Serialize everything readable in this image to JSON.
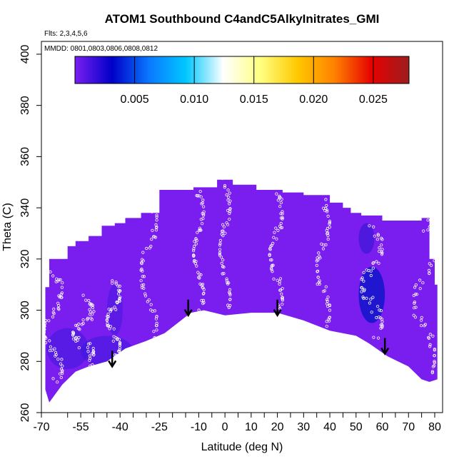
{
  "chart_data": {
    "type": "heatmap",
    "title": "ATOM1 Southbound C4andC5AlkyInitrates_GMI",
    "flights_label": "Flts: 2,3,4,5,6",
    "dates_label": "MMDD: 0801,0803,0806,0808,0812",
    "xlabel": "Latitude (deg N)",
    "ylabel": "Theta (C)",
    "xlim": [
      -70,
      83
    ],
    "ylim": [
      260,
      405
    ],
    "x_ticks": [
      -70,
      -55,
      -40,
      -25,
      -10,
      0,
      10,
      20,
      30,
      40,
      50,
      60,
      70,
      80
    ],
    "x_tick_labels": [
      "-70",
      "-55",
      "-40",
      "-25",
      "-10",
      "0",
      "10",
      "20",
      "30",
      "40",
      "50",
      "60",
      "70",
      "80"
    ],
    "x_minor_ticks": [
      -60,
      -50,
      -45,
      -35,
      -30,
      -20,
      -15,
      -5,
      5,
      15,
      25,
      35,
      45,
      55,
      65,
      75
    ],
    "y_ticks": [
      260,
      280,
      300,
      320,
      340,
      360,
      380,
      400
    ],
    "y_tick_labels": [
      "260",
      "280",
      "300",
      "320",
      "340",
      "360",
      "380",
      "400"
    ],
    "colorbar": {
      "min": 0.0,
      "max": 0.028,
      "ticks": [
        0.005,
        0.01,
        0.015,
        0.02,
        0.025
      ],
      "tick_labels": [
        "0.005",
        "0.010",
        "0.015",
        "0.020",
        "0.025"
      ],
      "colors": [
        "#7a1ef0",
        "#0000c8",
        "#0a78ff",
        "#00c8ff",
        "#ffffff",
        "#ffff80",
        "#ffc800",
        "#ff8000",
        "#e60000",
        "#9b1e1e"
      ]
    },
    "field_color": "#7a1ef0",
    "domain_top": [
      [
        -68.5,
        309
      ],
      [
        -67,
        320
      ],
      [
        -63,
        320
      ],
      [
        -60,
        325
      ],
      [
        -57,
        327
      ],
      [
        -52,
        329
      ],
      [
        -47,
        333
      ],
      [
        -42,
        334
      ],
      [
        -38,
        336
      ],
      [
        -32,
        338
      ],
      [
        -25,
        347
      ],
      [
        -12,
        348
      ],
      [
        -3,
        351
      ],
      [
        3,
        349
      ],
      [
        12,
        347
      ],
      [
        22,
        346
      ],
      [
        30,
        345
      ],
      [
        35,
        345
      ],
      [
        40,
        342
      ],
      [
        45,
        340
      ],
      [
        48,
        338
      ],
      [
        52,
        337
      ],
      [
        60,
        335
      ],
      [
        75,
        336
      ],
      [
        78,
        332
      ],
      [
        78,
        320
      ],
      [
        80,
        310
      ],
      [
        81,
        300
      ],
      [
        81,
        286
      ]
    ],
    "domain_bottom": [
      [
        -68.5,
        269
      ],
      [
        -67,
        264
      ],
      [
        -62,
        271
      ],
      [
        -57,
        276
      ],
      [
        -52,
        278
      ],
      [
        -45,
        280
      ],
      [
        -38,
        285
      ],
      [
        -30,
        288
      ],
      [
        -23,
        291
      ],
      [
        -13,
        299
      ],
      [
        -8,
        300
      ],
      [
        0,
        298
      ],
      [
        10,
        299
      ],
      [
        20,
        299
      ],
      [
        30,
        296
      ],
      [
        40,
        292
      ],
      [
        50,
        290
      ],
      [
        55,
        287
      ],
      [
        62,
        282
      ],
      [
        70,
        278
      ],
      [
        75,
        273
      ],
      [
        78,
        272
      ],
      [
        81,
        273
      ]
    ],
    "dark_patches": [
      {
        "lat": 56,
        "theta": 306,
        "rx": 5,
        "rtheta": 11,
        "color": "#0a14c8",
        "opacity": 0.8
      },
      {
        "lat": 54,
        "theta": 328,
        "rx": 3,
        "rtheta": 6,
        "color": "#2a14d2",
        "opacity": 0.55
      },
      {
        "lat": -60,
        "theta": 285,
        "rx": 8,
        "rtheta": 8,
        "color": "#3516d9",
        "opacity": 0.5
      },
      {
        "lat": -45,
        "theta": 284,
        "rx": 10,
        "rtheta": 6,
        "color": "#3516d9",
        "opacity": 0.5
      },
      {
        "lat": -42,
        "theta": 300,
        "rx": 3,
        "rtheta": 10,
        "color": "#3516d9",
        "opacity": 0.45
      }
    ],
    "tracks": [
      {
        "lat_start": -69,
        "lat_end": -62,
        "theta_start": 272,
        "theta_end": 315
      },
      {
        "lat_start": -58,
        "lat_end": -50,
        "theta_start": 279,
        "theta_end": 305
      },
      {
        "lat_start": -45,
        "lat_end": -40,
        "theta_start": 282,
        "theta_end": 312
      },
      {
        "lat_start": -32,
        "lat_end": -26,
        "theta_start": 289,
        "theta_end": 345
      },
      {
        "lat_start": -12,
        "lat_end": -8,
        "theta_start": 301,
        "theta_end": 347
      },
      {
        "lat_start": -2,
        "lat_end": 2,
        "theta_start": 300,
        "theta_end": 350
      },
      {
        "lat_start": 17,
        "lat_end": 22,
        "theta_start": 300,
        "theta_end": 346
      },
      {
        "lat_start": 35,
        "lat_end": 40,
        "theta_start": 293,
        "theta_end": 343
      },
      {
        "lat_start": 52,
        "lat_end": 60,
        "theta_start": 290,
        "theta_end": 332
      },
      {
        "lat_start": 72,
        "lat_end": 80,
        "theta_start": 275,
        "theta_end": 334
      }
    ],
    "arrows": [
      {
        "lat": -43,
        "theta": 278
      },
      {
        "lat": -14,
        "theta": 298
      },
      {
        "lat": 20,
        "theta": 298
      },
      {
        "lat": 61,
        "theta": 283
      }
    ]
  }
}
